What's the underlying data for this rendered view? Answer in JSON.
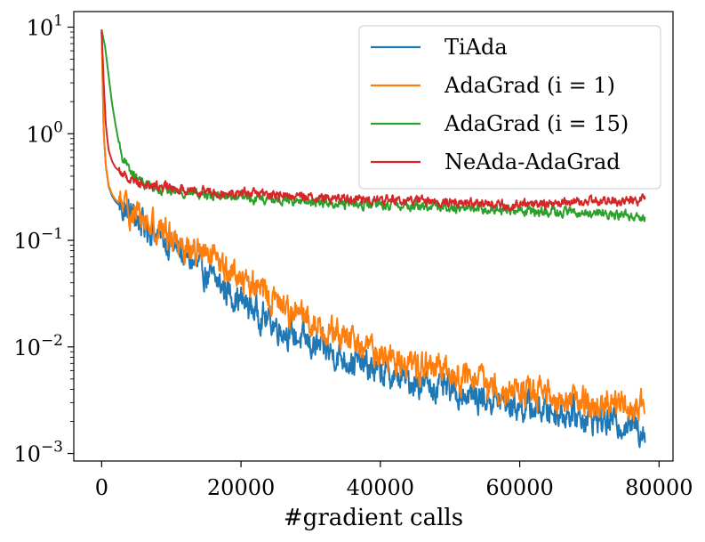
{
  "chart_data": {
    "type": "line",
    "title": "",
    "xlabel": "#gradient calls",
    "ylabel": "",
    "yscale": "log",
    "xlim": [
      -4000,
      82000
    ],
    "ylim": [
      0.00085,
      14
    ],
    "xticks": [
      0,
      20000,
      40000,
      60000,
      80000
    ],
    "xtick_labels": [
      "0",
      "20000",
      "40000",
      "60000",
      "80000"
    ],
    "yticks": [
      0.001,
      0.01,
      0.1,
      1,
      10
    ],
    "ytick_labels": [
      {
        "base": "10",
        "exp": "−3"
      },
      {
        "base": "10",
        "exp": "−2"
      },
      {
        "base": "10",
        "exp": "−1"
      },
      {
        "base": "10",
        "exp": "0"
      },
      {
        "base": "10",
        "exp": "1"
      }
    ],
    "legend_position": "top-right",
    "series": [
      {
        "name": "TiAda",
        "color": "#1f77b4",
        "noise": 0.11,
        "x": [
          0,
          300,
          600,
          1000,
          1500,
          2000,
          3000,
          4000,
          5000,
          6000,
          8000,
          10000,
          12000,
          15000,
          18000,
          20000,
          25000,
          30000,
          35000,
          40000,
          45000,
          50000,
          55000,
          60000,
          65000,
          70000,
          75000,
          78000
        ],
        "y": [
          9,
          1.0,
          0.5,
          0.32,
          0.26,
          0.23,
          0.2,
          0.18,
          0.16,
          0.14,
          0.115,
          0.09,
          0.07,
          0.048,
          0.034,
          0.027,
          0.016,
          0.0105,
          0.0078,
          0.0058,
          0.0047,
          0.0039,
          0.0033,
          0.0028,
          0.0025,
          0.0022,
          0.0019,
          0.0017
        ]
      },
      {
        "name": "AdaGrad ($i=1$)",
        "legend_label": "AdaGrad (i = 1)",
        "color": "#ff7f0e",
        "noise": 0.11,
        "x": [
          0,
          300,
          600,
          1000,
          1500,
          2000,
          3000,
          4000,
          5000,
          6000,
          8000,
          10000,
          12000,
          15000,
          18000,
          20000,
          25000,
          30000,
          35000,
          40000,
          45000,
          50000,
          55000,
          60000,
          65000,
          70000,
          75000,
          78000
        ],
        "y": [
          9,
          1.0,
          0.5,
          0.33,
          0.27,
          0.24,
          0.21,
          0.19,
          0.17,
          0.155,
          0.13,
          0.11,
          0.09,
          0.07,
          0.053,
          0.045,
          0.027,
          0.017,
          0.012,
          0.0085,
          0.0068,
          0.0055,
          0.0045,
          0.0039,
          0.0034,
          0.003,
          0.0027,
          0.0026
        ]
      },
      {
        "name": "AdaGrad ($i=15$)",
        "legend_label": "AdaGrad (i = 15)",
        "color": "#2ca02c",
        "noise": 0.035,
        "x": [
          0,
          500,
          1000,
          1500,
          2000,
          2500,
          3000,
          4000,
          5000,
          6000,
          8000,
          10000,
          15000,
          20000,
          25000,
          30000,
          35000,
          40000,
          45000,
          50000,
          55000,
          60000,
          65000,
          70000,
          75000,
          78000
        ],
        "y": [
          9.5,
          6.5,
          3.5,
          1.9,
          1.2,
          0.8,
          0.6,
          0.45,
          0.38,
          0.34,
          0.31,
          0.29,
          0.27,
          0.25,
          0.24,
          0.23,
          0.22,
          0.215,
          0.21,
          0.205,
          0.2,
          0.19,
          0.185,
          0.18,
          0.175,
          0.165
        ]
      },
      {
        "name": "NeAda-AdaGrad",
        "color": "#d62728",
        "noise": 0.035,
        "x": [
          0,
          300,
          600,
          1000,
          1500,
          2000,
          3000,
          4000,
          5000,
          6000,
          8000,
          10000,
          15000,
          20000,
          25000,
          30000,
          35000,
          40000,
          45000,
          50000,
          55000,
          57500,
          58000,
          60000,
          65000,
          70000,
          75000,
          78000
        ],
        "y": [
          9.5,
          3,
          1.2,
          0.7,
          0.55,
          0.48,
          0.42,
          0.38,
          0.36,
          0.34,
          0.32,
          0.31,
          0.29,
          0.28,
          0.265,
          0.255,
          0.245,
          0.24,
          0.235,
          0.23,
          0.225,
          0.22,
          0.2,
          0.22,
          0.225,
          0.23,
          0.235,
          0.24
        ]
      }
    ]
  }
}
